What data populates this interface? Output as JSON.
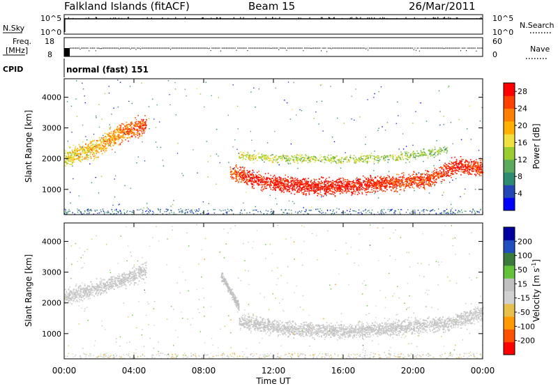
{
  "header": {
    "station": "Falkland Islands (fitACF)",
    "beam": "Beam 15",
    "date": "26/Mar/2011"
  },
  "strips": {
    "nsky_label": "N.Sky",
    "nsky_ticks": [
      "10^5",
      "10^0"
    ],
    "nsearch_label": "N.Search",
    "nsearch_ticks": [
      "10^5",
      "10^0"
    ],
    "freq_label": "Freq.",
    "freq_unit": "[MHz]",
    "freq_ticks": [
      "18",
      "8"
    ],
    "nave_label": "Nave",
    "nave_ticks": [
      "60",
      "0"
    ],
    "cpid_label": "CPID",
    "cpid_value": "normal (fast) 151"
  },
  "colors": {
    "power_scale": [
      "#0000ff",
      "#2347b4",
      "#2e8b72",
      "#5aab5e",
      "#9acd32",
      "#f0e040",
      "#ffb000",
      "#ff8000",
      "#ff4000",
      "#ff0000"
    ],
    "velocity_scale": [
      "#0000a0",
      "#2050c0",
      "#3a7a3a",
      "#62c23a",
      "#c0c0c0",
      "#d0d0d0",
      "#e6c04a",
      "#ff9a00",
      "#ff5000",
      "#ff0000"
    ]
  },
  "chart_data": [
    {
      "type": "heatmap",
      "ylabel": "Slant Range [km]",
      "xlabel": "Time UT",
      "x_ticks": [
        "00:00",
        "04:00",
        "08:00",
        "12:00",
        "16:00",
        "20:00",
        "00:00"
      ],
      "y_ticks": [
        "1000",
        "2000",
        "3000",
        "4000"
      ],
      "xlim": [
        0,
        24
      ],
      "ylim": [
        180,
        4600
      ],
      "colorbar": {
        "label": "Power [dB]",
        "ticks": [
          "4",
          "8",
          "12",
          "16",
          "20",
          "24",
          "28"
        ],
        "range": [
          0,
          30
        ]
      },
      "features": [
        {
          "t": [
            0,
            1,
            2,
            3,
            4,
            4.7
          ],
          "range": [
            2000,
            2200,
            2400,
            2800,
            3000,
            3100
          ],
          "power": [
            16,
            18,
            20,
            22,
            24,
            26
          ]
        },
        {
          "t": [
            9.5,
            11,
            13,
            15,
            17,
            19,
            21,
            22.5,
            24
          ],
          "range": [
            1600,
            1300,
            1150,
            1100,
            1150,
            1250,
            1350,
            1800,
            1700
          ],
          "power": [
            24,
            28,
            28,
            28,
            28,
            26,
            26,
            28,
            26
          ]
        },
        {
          "t": [
            10,
            13,
            16,
            19,
            22
          ],
          "range": [
            2100,
            2000,
            2000,
            2050,
            2300
          ],
          "power": [
            16,
            14,
            14,
            14,
            12
          ]
        }
      ]
    },
    {
      "type": "heatmap",
      "ylabel": "Slant Range [km]",
      "xlabel": "Time UT",
      "x_ticks": [
        "00:00",
        "04:00",
        "08:00",
        "12:00",
        "16:00",
        "20:00",
        "00:00"
      ],
      "y_ticks": [
        "1000",
        "2000",
        "3000",
        "4000"
      ],
      "xlim": [
        0,
        24
      ],
      "ylim": [
        180,
        4600
      ],
      "colorbar": {
        "label": "Velocity [m s",
        "label_sup": "-1",
        "label_end": "]",
        "ticks": [
          "200",
          "100",
          "50",
          "15",
          "-15",
          "-50",
          "-100",
          "-200"
        ],
        "range": [
          -250,
          250
        ]
      },
      "features": [
        {
          "t": [
            0,
            2,
            4,
            4.7
          ],
          "range": [
            2200,
            2500,
            2900,
            3100
          ],
          "velocity": [
            0,
            0,
            0,
            0
          ]
        },
        {
          "t": [
            9,
            9.5,
            10
          ],
          "range": [
            2900,
            2400,
            1900
          ],
          "velocity": [
            30,
            40,
            30
          ]
        },
        {
          "t": [
            10,
            13,
            16,
            19,
            22,
            24
          ],
          "range": [
            1400,
            1150,
            1100,
            1200,
            1350,
            1700
          ],
          "velocity": [
            0,
            0,
            0,
            0,
            0,
            0
          ]
        }
      ]
    }
  ]
}
